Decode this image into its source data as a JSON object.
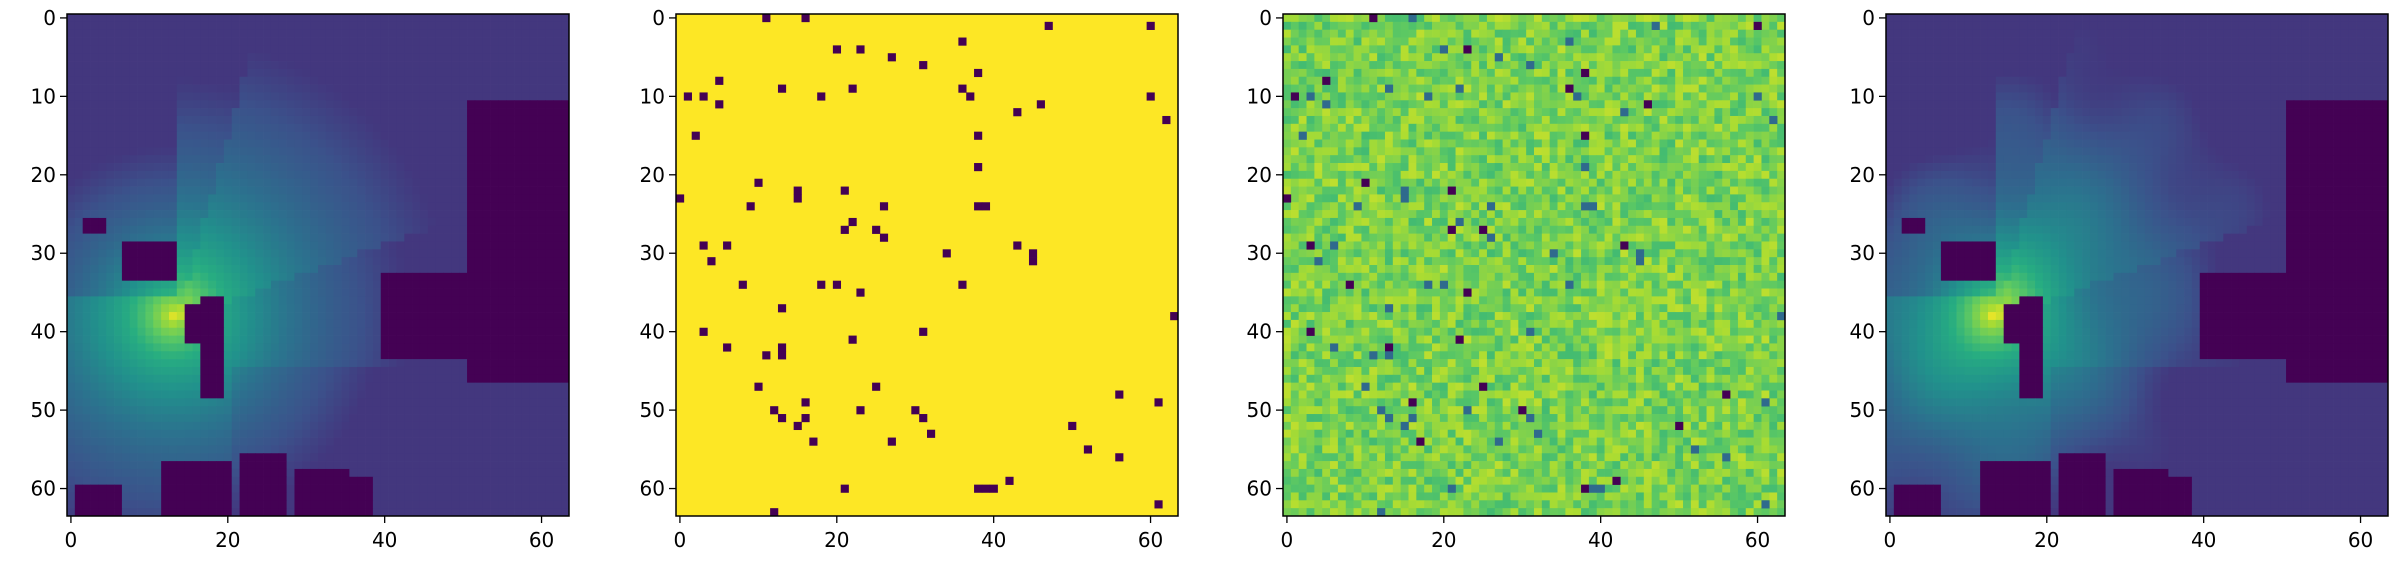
{
  "chart_data": [
    {
      "type": "heatmap",
      "panel": "radio-map",
      "grid_size": [
        64,
        64
      ],
      "x_ticks": [
        0,
        20,
        40,
        60
      ],
      "y_ticks": [
        0,
        10,
        20,
        30,
        40,
        50,
        60
      ],
      "xlim": [
        -0.5,
        63.5
      ],
      "ylim": [
        63.5,
        -0.5
      ],
      "colormap": "viridis",
      "source_center": [
        13.5,
        38.5
      ],
      "buildings": [
        [
          51,
          11,
          64,
          47
        ],
        [
          40,
          33,
          51,
          44
        ],
        [
          2,
          26,
          5,
          28
        ],
        [
          7,
          29,
          14,
          34
        ],
        [
          17,
          36,
          20,
          49
        ],
        [
          15,
          37,
          20,
          42
        ],
        [
          1,
          60,
          7,
          64
        ],
        [
          12,
          57,
          21,
          64
        ],
        [
          22,
          56,
          28,
          64
        ],
        [
          29,
          58,
          36,
          64
        ],
        [
          34,
          59,
          39,
          64
        ]
      ]
    },
    {
      "type": "heatmap",
      "panel": "sample-mask",
      "grid_size": [
        64,
        64
      ],
      "x_ticks": [
        0,
        20,
        40,
        60
      ],
      "y_ticks": [
        0,
        10,
        20,
        30,
        40,
        50,
        60
      ],
      "xlim": [
        -0.5,
        63.5
      ],
      "ylim": [
        63.5,
        -0.5
      ],
      "colormap": "viridis",
      "background_value": 1,
      "sample_points": [
        [
          11,
          0
        ],
        [
          16,
          0
        ],
        [
          47,
          1
        ],
        [
          60,
          1
        ],
        [
          36,
          3
        ],
        [
          20,
          4
        ],
        [
          23,
          4
        ],
        [
          27,
          5
        ],
        [
          31,
          6
        ],
        [
          38,
          7
        ],
        [
          60,
          10
        ],
        [
          62,
          13
        ],
        [
          5,
          8
        ],
        [
          13,
          9
        ],
        [
          3,
          10
        ],
        [
          1,
          10
        ],
        [
          18,
          10
        ],
        [
          22,
          9
        ],
        [
          36,
          9
        ],
        [
          37,
          10
        ],
        [
          43,
          12
        ],
        [
          46,
          11
        ],
        [
          5,
          11
        ],
        [
          2,
          15
        ],
        [
          38,
          15
        ],
        [
          38,
          19
        ],
        [
          9,
          24
        ],
        [
          10,
          21
        ],
        [
          15,
          22
        ],
        [
          15,
          23
        ],
        [
          21,
          22
        ],
        [
          26,
          24
        ],
        [
          26,
          28
        ],
        [
          25,
          27
        ],
        [
          38,
          24
        ],
        [
          39,
          24
        ],
        [
          3,
          29
        ],
        [
          6,
          29
        ],
        [
          4,
          31
        ],
        [
          21,
          27
        ],
        [
          22,
          26
        ],
        [
          34,
          30
        ],
        [
          43,
          29
        ],
        [
          45,
          30
        ],
        [
          45,
          31
        ],
        [
          8,
          34
        ],
        [
          18,
          34
        ],
        [
          20,
          34
        ],
        [
          23,
          35
        ],
        [
          36,
          34
        ],
        [
          13,
          37
        ],
        [
          3,
          40
        ],
        [
          6,
          42
        ],
        [
          11,
          43
        ],
        [
          13,
          42
        ],
        [
          13,
          43
        ],
        [
          31,
          40
        ],
        [
          22,
          41
        ],
        [
          63,
          38
        ],
        [
          10,
          47
        ],
        [
          25,
          47
        ],
        [
          12,
          50
        ],
        [
          13,
          51
        ],
        [
          16,
          49
        ],
        [
          15,
          52
        ],
        [
          16,
          51
        ],
        [
          17,
          54
        ],
        [
          23,
          50
        ],
        [
          27,
          54
        ],
        [
          30,
          50
        ],
        [
          31,
          51
        ],
        [
          32,
          53
        ],
        [
          50,
          52
        ],
        [
          52,
          55
        ],
        [
          56,
          56
        ],
        [
          56,
          48
        ],
        [
          61,
          49
        ],
        [
          21,
          60
        ],
        [
          38,
          60
        ],
        [
          39,
          60
        ],
        [
          40,
          60
        ],
        [
          42,
          59
        ],
        [
          12,
          63
        ],
        [
          61,
          62
        ],
        [
          0,
          23
        ]
      ]
    },
    {
      "type": "heatmap",
      "panel": "noisy-measurements",
      "grid_size": [
        64,
        64
      ],
      "x_ticks": [
        0,
        20,
        40,
        60
      ],
      "y_ticks": [
        0,
        10,
        20,
        30,
        40,
        50,
        60
      ],
      "xlim": [
        -0.5,
        63.5
      ],
      "ylim": [
        63.5,
        -0.5
      ],
      "colormap": "viridis"
    },
    {
      "type": "heatmap",
      "panel": "reconstruction",
      "grid_size": [
        64,
        64
      ],
      "x_ticks": [
        0,
        20,
        40,
        60
      ],
      "y_ticks": [
        0,
        10,
        20,
        30,
        40,
        50,
        60
      ],
      "xlim": [
        -0.5,
        63.5
      ],
      "ylim": [
        63.5,
        -0.5
      ],
      "colormap": "viridis",
      "source_center": [
        13.5,
        38.5
      ]
    }
  ]
}
